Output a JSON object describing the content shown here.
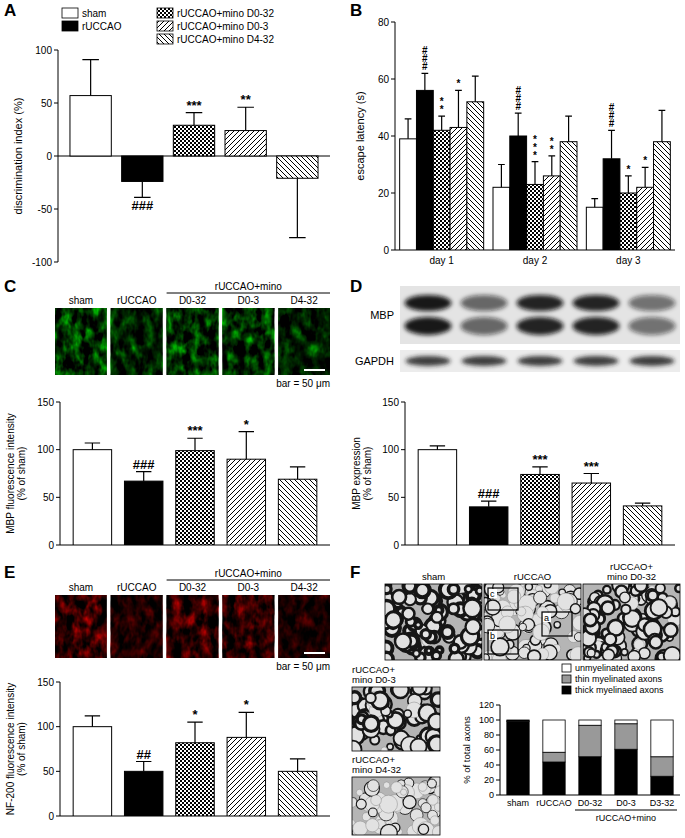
{
  "chart_data": [
    {
      "type": "bar",
      "title": "A",
      "categories": [
        null
      ],
      "y_label": "discrimination index (%)",
      "ylim": [
        -100,
        100
      ],
      "yticks": [
        -100,
        -50,
        0,
        50,
        100
      ],
      "legend": "top",
      "tick_labels": "y",
      "series": [
        {
          "name": "sham",
          "color": "#ffffff",
          "values": [
            57
          ],
          "errors": [
            34
          ]
        },
        {
          "name": "rUCCAO",
          "color": "#000000",
          "values": [
            -24
          ],
          "errors": [
            15
          ],
          "annotations": [
            "###"
          ]
        },
        {
          "name": "rUCCAO+mino D0-32",
          "color": "#000000",
          "values": [
            29
          ],
          "errors": [
            12
          ],
          "annotations": [
            "***"
          ]
        },
        {
          "name": "rUCCAO+mino D0-3",
          "color": "#000000",
          "values": [
            24
          ],
          "errors": [
            22
          ],
          "annotations": [
            "**"
          ]
        },
        {
          "name": "rUCCAO+mino D4-32",
          "color": "#000000",
          "values": [
            -21
          ],
          "errors": [
            56
          ]
        }
      ]
    },
    {
      "type": "bar",
      "title": "B",
      "categories": [
        "day 1",
        "day 2",
        "day 3"
      ],
      "y_label": "escape latency (s)",
      "ylim": [
        0,
        80
      ],
      "yticks": [
        0,
        20,
        40,
        60,
        80
      ],
      "series": [
        {
          "color": "#ffffff",
          "values": [
            39,
            22,
            15
          ],
          "errors": [
            7,
            8,
            3
          ]
        },
        {
          "color": "#000000",
          "values": [
            56,
            40,
            32
          ],
          "errors": [
            6,
            8,
            10
          ],
          "annotations": [
            "###",
            "###",
            "###"
          ]
        },
        {
          "color": "#000000",
          "values": [
            42,
            23,
            20
          ],
          "errors": [
            5,
            8,
            6
          ],
          "annotations": [
            "**",
            "***",
            "*"
          ]
        },
        {
          "color": "#000000",
          "values": [
            43,
            26,
            22
          ],
          "errors": [
            13,
            7,
            7
          ],
          "annotations": [
            "*",
            "**",
            "*"
          ]
        },
        {
          "color": "#000000",
          "values": [
            52,
            38,
            38
          ],
          "errors": [
            9,
            9,
            11
          ]
        }
      ]
    },
    {
      "type": "bar",
      "title": "C",
      "categories": [
        null
      ],
      "y_label": "MBP fluorescence intensity\n(% of sham)",
      "ylim": [
        0,
        150
      ],
      "yticks": [
        0,
        50,
        100,
        150
      ],
      "tick_labels": "y",
      "series": [
        {
          "color": "#ffffff",
          "values": [
            100
          ],
          "errors": [
            7
          ]
        },
        {
          "color": "#000000",
          "values": [
            67
          ],
          "errors": [
            10
          ],
          "annotations": [
            "###"
          ]
        },
        {
          "color": "#000000",
          "values": [
            99
          ],
          "errors": [
            13
          ],
          "annotations": [
            "***"
          ]
        },
        {
          "color": "#000000",
          "values": [
            90
          ],
          "errors": [
            29
          ],
          "annotations": [
            "*"
          ]
        },
        {
          "color": "#000000",
          "values": [
            69
          ],
          "errors": [
            13
          ]
        }
      ]
    },
    {
      "type": "bar",
      "title": "D",
      "categories": [
        null
      ],
      "y_label": "MBP expression\n(% of sham)",
      "ylim": [
        0,
        150
      ],
      "yticks": [
        0,
        50,
        100,
        150
      ],
      "tick_labels": "y",
      "series": [
        {
          "color": "#ffffff",
          "values": [
            100
          ],
          "errors": [
            4
          ]
        },
        {
          "color": "#000000",
          "values": [
            40
          ],
          "errors": [
            6
          ],
          "annotations": [
            "###"
          ]
        },
        {
          "color": "#000000",
          "values": [
            74
          ],
          "errors": [
            8
          ],
          "annotations": [
            "***"
          ]
        },
        {
          "color": "#000000",
          "values": [
            65
          ],
          "errors": [
            10
          ],
          "annotations": [
            "***"
          ]
        },
        {
          "color": "#000000",
          "values": [
            41
          ],
          "errors": [
            3
          ]
        }
      ]
    },
    {
      "type": "bar",
      "title": "E",
      "categories": [
        null
      ],
      "y_label": "NF-200 fluorescence intensity\n(% of sham)",
      "ylim": [
        0,
        150
      ],
      "yticks": [
        0,
        50,
        100,
        150
      ],
      "tick_labels": "y",
      "series": [
        {
          "color": "#ffffff",
          "values": [
            100
          ],
          "errors": [
            12
          ]
        },
        {
          "color": "#000000",
          "values": [
            50
          ],
          "errors": [
            11
          ],
          "annotations": [
            "##"
          ]
        },
        {
          "color": "#000000",
          "values": [
            82
          ],
          "errors": [
            23
          ],
          "annotations": [
            "*"
          ]
        },
        {
          "color": "#000000",
          "values": [
            88
          ],
          "errors": [
            28
          ],
          "annotations": [
            "*"
          ]
        },
        {
          "color": "#000000",
          "values": [
            50
          ],
          "errors": [
            14
          ]
        }
      ]
    },
    {
      "type": "bar",
      "title": "F",
      "stacked": true,
      "legend": "top right",
      "categories": [
        "sham",
        "rUCCAO",
        "D0-32",
        "D0-3",
        "D3-32"
      ],
      "category_group_label": "rUCCAO+mino",
      "y_label": "% of total axons",
      "ylim": [
        0,
        120
      ],
      "yticks": [
        0,
        20,
        40,
        60,
        80,
        100,
        120
      ],
      "series": [
        {
          "name": "thick myelinaed axons",
          "color": "#000000",
          "values": [
            98,
            44,
            51,
            61,
            25
          ]
        },
        {
          "name": "thin myelinated axons",
          "color": "#999999",
          "values": [
            1,
            13,
            42,
            34,
            26
          ]
        },
        {
          "name": "unmyelinated axons",
          "color": "#ffffff",
          "values": [
            1,
            43,
            7,
            5,
            49
          ]
        }
      ]
    }
  ],
  "images": {
    "C": {
      "labels": [
        "sham",
        "rUCCAO",
        "D0-32",
        "D0-3",
        "D4-32"
      ],
      "group_label": "rUCCAO+mino",
      "scale_bar": "bar = 50 μm"
    },
    "D": {
      "labels": [
        "MBP",
        "GAPDH"
      ]
    },
    "E": {
      "labels": [
        "sham",
        "rUCCAO",
        "D0-32",
        "D0-3",
        "D4-32"
      ],
      "group_label": "rUCCAO+mino",
      "scale_bar": "bar = 50 μm"
    },
    "F": {
      "labels": [
        "sham",
        "rUCCAO",
        "rUCCAO+\nmino D0-32",
        "rUCCAO+\nmino D0-3",
        "rUCCAO+\nmino D4-32"
      ],
      "insets": [
        "a",
        "b",
        "c"
      ]
    }
  }
}
